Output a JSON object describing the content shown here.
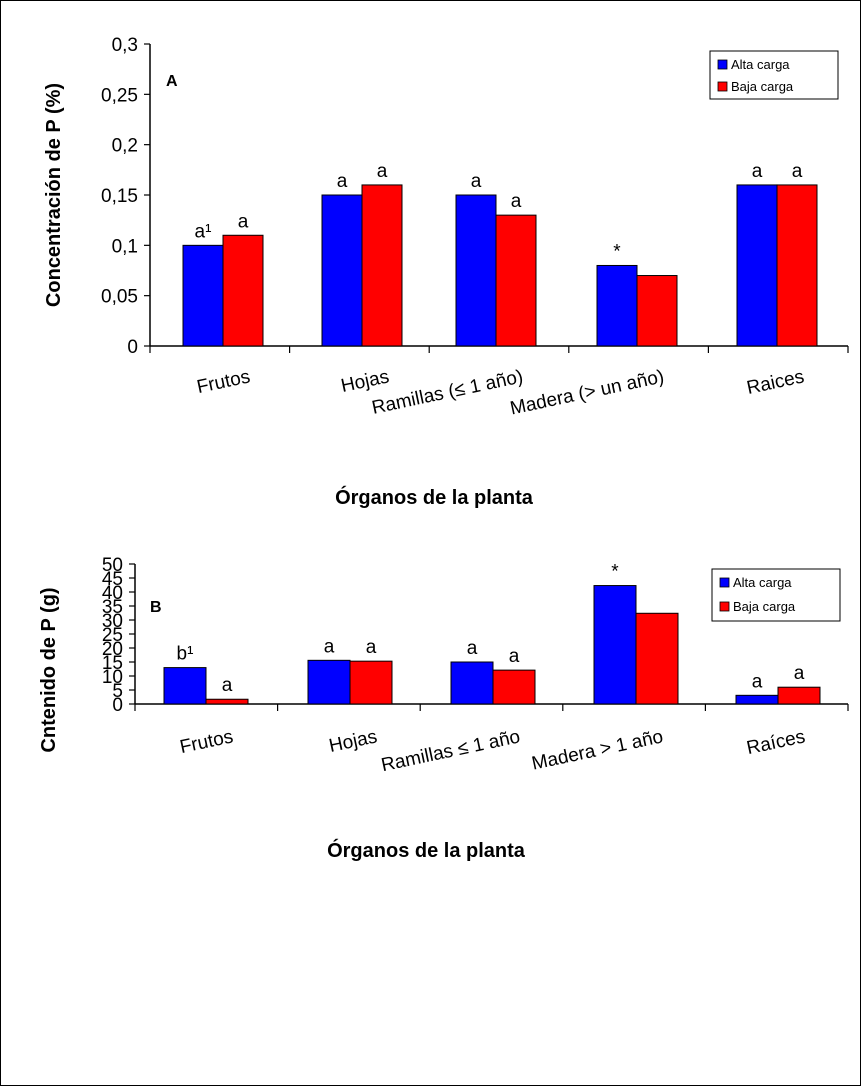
{
  "chart_data": [
    {
      "type": "bar",
      "panel_label": "A",
      "categories": [
        "Frutos",
        "Hojas",
        "Ramillas  (≤ 1 año)",
        "Madera (> un año)",
        "Raices"
      ],
      "series": [
        {
          "name": "Alta carga",
          "color": "#0000ff",
          "values": [
            0.1,
            0.15,
            0.15,
            0.08,
            0.16
          ]
        },
        {
          "name": "Baja carga",
          "color": "#ff0000",
          "values": [
            0.11,
            0.16,
            0.13,
            0.07,
            0.16
          ]
        }
      ],
      "bar_labels": [
        [
          "a¹",
          "a",
          "a",
          "*",
          "a"
        ],
        [
          "a",
          "a",
          "a",
          "",
          "a"
        ]
      ],
      "ylabel": "Concentración de P (%)",
      "xlabel": "Órganos de la planta",
      "ylim": [
        0,
        0.3
      ],
      "yticks": [
        0,
        0.05,
        0.1,
        0.15,
        0.2,
        0.25,
        0.3
      ],
      "ytick_labels": [
        "0",
        "0,05",
        "0,1",
        "0,15",
        "0,2",
        "0,25",
        "0,3"
      ],
      "legend_position": "top-right",
      "grid": false
    },
    {
      "type": "bar",
      "panel_label": "B",
      "categories": [
        "Frutos",
        "Hojas",
        "Ramillas ≤ 1 año",
        "Madera > 1 año",
        "Raíces"
      ],
      "series": [
        {
          "name": "Alta carga",
          "color": "#0000ff",
          "values": [
            13.0,
            15.6,
            15.0,
            42.3,
            3.1
          ]
        },
        {
          "name": "Baja carga",
          "color": "#ff0000",
          "values": [
            1.7,
            15.3,
            12.1,
            32.4,
            6.0
          ]
        }
      ],
      "bar_labels": [
        [
          "b¹",
          "a",
          "a",
          "*",
          "a"
        ],
        [
          "a",
          "a",
          "a",
          "",
          "a"
        ]
      ],
      "ylabel": "Cntenido de P (g)",
      "xlabel": "Órganos de la planta",
      "ylim": [
        0,
        50
      ],
      "yticks": [
        0,
        5,
        10,
        15,
        20,
        25,
        30,
        35,
        40,
        45,
        50
      ],
      "ytick_labels": [
        "0",
        "5",
        "10",
        "15",
        "20",
        "25",
        "30",
        "35",
        "40",
        "45",
        "50"
      ],
      "legend_position": "top-right",
      "grid": false
    }
  ]
}
